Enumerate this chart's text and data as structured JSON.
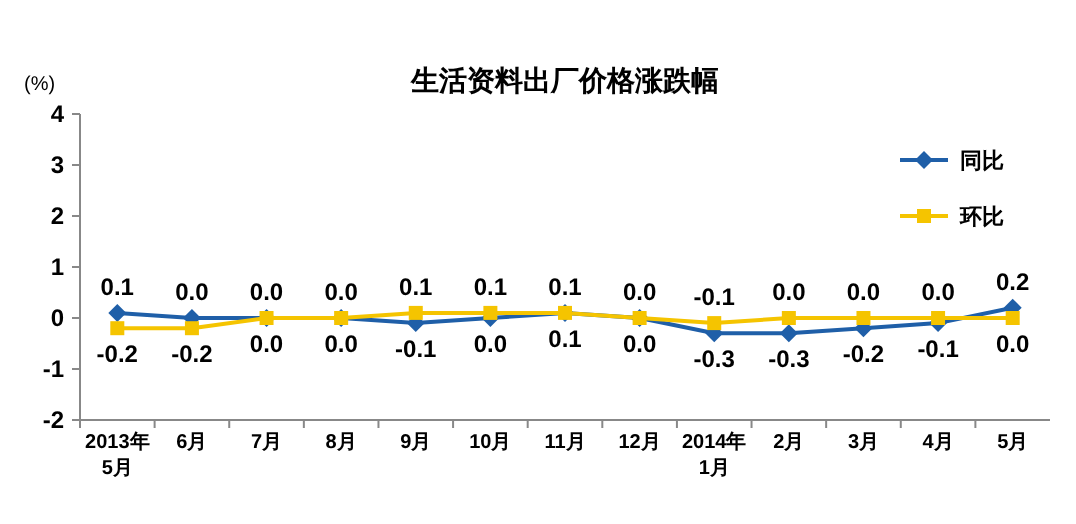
{
  "chart_data": {
    "type": "line",
    "title": "生活资料出厂价格涨跌幅",
    "ylabel": "(%)",
    "categories": [
      "2013年\n5月",
      "6月",
      "7月",
      "8月",
      "9月",
      "10月",
      "11月",
      "12月",
      "2014年\n1月",
      "2月",
      "3月",
      "4月",
      "5月"
    ],
    "series": [
      {
        "name": "同比",
        "color": "#1f5fa8",
        "marker": "diamond",
        "values": [
          0.1,
          0.0,
          0.0,
          0.0,
          -0.1,
          0.0,
          0.1,
          0.0,
          -0.3,
          -0.3,
          -0.2,
          -0.1,
          0.2
        ],
        "value_labels": [
          "0.1",
          "0.0",
          "0.0",
          "0.0",
          "-0.1",
          "0.0",
          "0.1",
          "0.0",
          "-0.3",
          "-0.3",
          "-0.2",
          "-0.1",
          "0.2"
        ]
      },
      {
        "name": "环比",
        "color": "#f5c400",
        "marker": "square",
        "values": [
          -0.2,
          -0.2,
          0.0,
          0.0,
          0.1,
          0.1,
          0.1,
          0.0,
          -0.1,
          0.0,
          0.0,
          0.0,
          0.0
        ],
        "value_labels": [
          "-0.2",
          "-0.2",
          "0.0",
          "0.0",
          "0.1",
          "0.1",
          "0.1",
          "0.0",
          "-0.1",
          "0.0",
          "0.0",
          "0.0",
          "0.0"
        ]
      }
    ],
    "ylim": [
      -2,
      4
    ],
    "yticks": [
      -2,
      -1,
      0,
      1,
      2,
      3,
      4
    ],
    "grid": false,
    "legend": "top right",
    "line_style": "solid"
  }
}
